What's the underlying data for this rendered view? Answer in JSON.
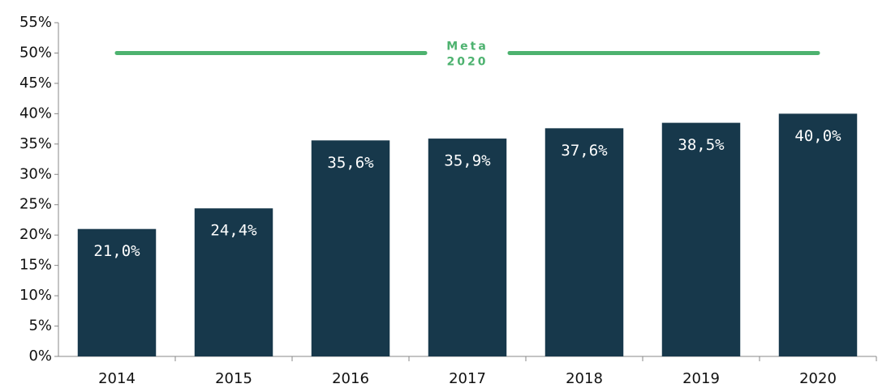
{
  "chart_data": {
    "type": "bar",
    "categories": [
      "2014",
      "2015",
      "2016",
      "2017",
      "2018",
      "2019",
      "2020"
    ],
    "values": [
      21.0,
      24.4,
      35.6,
      35.9,
      37.6,
      38.5,
      40.0
    ],
    "value_labels": [
      "21,0%",
      "24,4%",
      "35,6%",
      "35,9%",
      "37,6%",
      "38,5%",
      "40,0%"
    ],
    "color": "#17384b",
    "ylim": [
      0,
      55
    ],
    "yticks": [
      {
        "value": 0,
        "label": "0%"
      },
      {
        "value": 5,
        "label": "5%"
      },
      {
        "value": 10,
        "label": "10%"
      },
      {
        "value": 15,
        "label": "15%"
      },
      {
        "value": 20,
        "label": "20%"
      },
      {
        "value": 25,
        "label": "25%"
      },
      {
        "value": 30,
        "label": "30%"
      },
      {
        "value": 35,
        "label": "35%"
      },
      {
        "value": 40,
        "label": "40%"
      },
      {
        "value": 45,
        "label": "45%"
      },
      {
        "value": 50,
        "label": "50%"
      },
      {
        "value": 55,
        "label": "55%"
      }
    ],
    "target": {
      "value": 50,
      "label_lines": [
        "Meta",
        "2020"
      ],
      "color": "#4db26f"
    }
  }
}
